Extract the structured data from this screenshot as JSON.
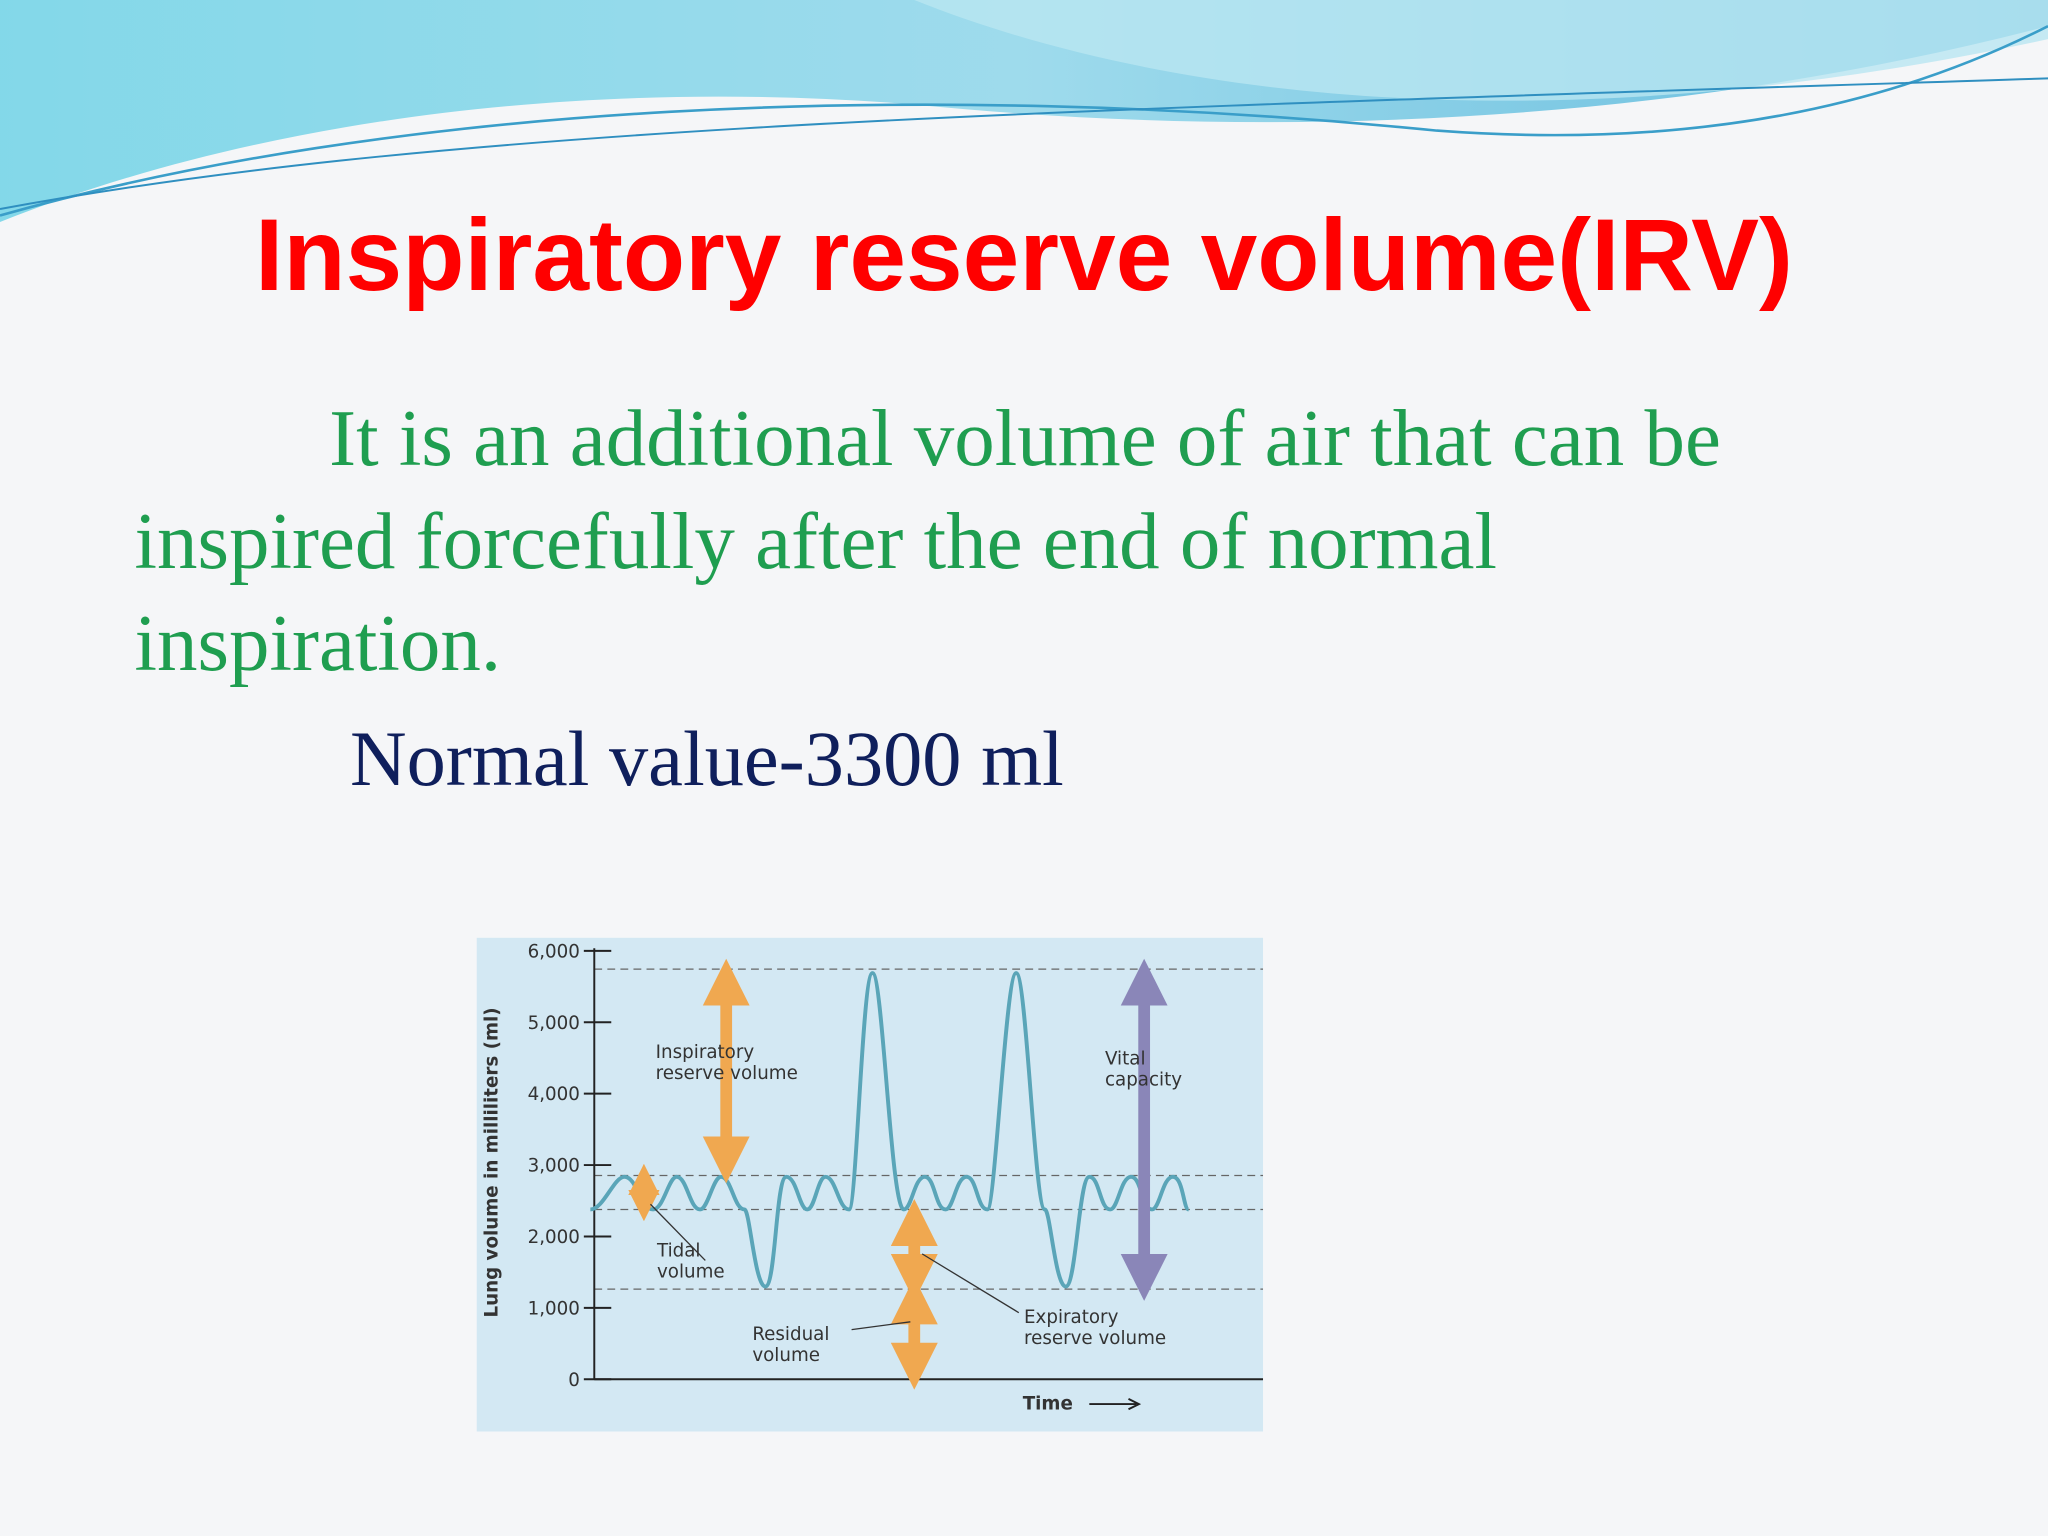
{
  "header": {
    "title": "Inspiratory reserve volume(IRV)"
  },
  "body": {
    "definition_lines": [
      "It is an additional volume of air that can be",
      "inspired forcefully after the end of normal",
      "inspiration."
    ],
    "normal_value": "Normal value-3300 ml"
  },
  "figure": {
    "y_axis_label": "Lung volume in milliliters (ml)",
    "x_axis_label": "Time",
    "ylim": [
      0,
      6000
    ],
    "yticks": [
      0,
      {
        "value": 1000,
        "label": "1,000"
      },
      {
        "value": 2000,
        "label": "2,000"
      },
      {
        "value": 3000,
        "label": "3,000"
      },
      {
        "value": 4000,
        "label": "4,000"
      },
      {
        "value": 5000,
        "label": "5,000"
      },
      {
        "value": 6000,
        "label": "6,000"
      }
    ],
    "annotations": {
      "irv": [
        "Inspiratory",
        "reserve volume"
      ],
      "vc": [
        "Vital",
        "capacity"
      ],
      "tidal": [
        "Tidal",
        "volume"
      ],
      "residual": [
        "Residual",
        "volume"
      ],
      "erv": [
        "Expiratory",
        "reserve volume"
      ]
    }
  }
}
